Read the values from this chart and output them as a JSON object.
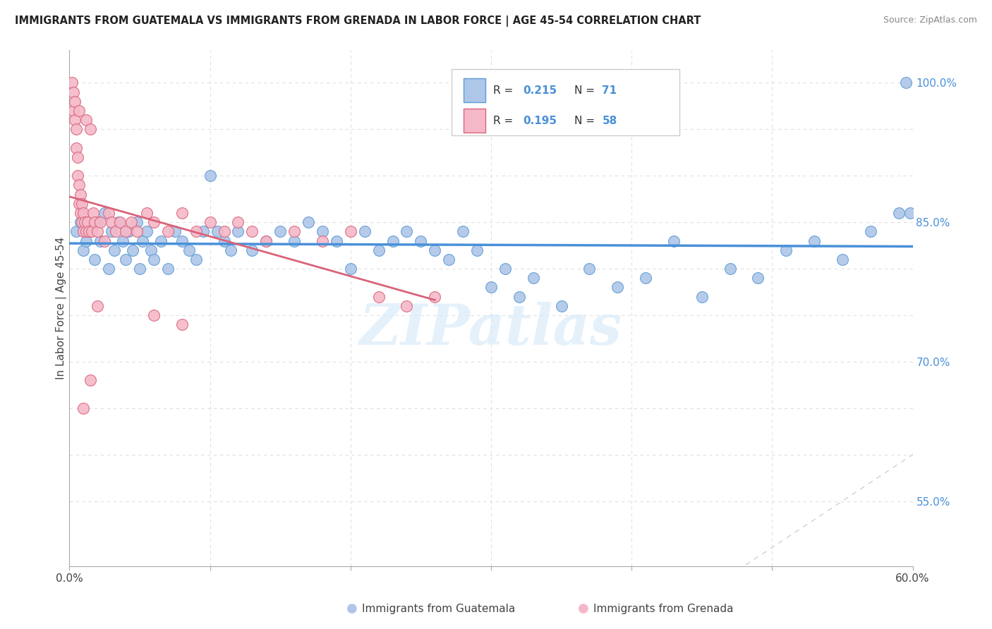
{
  "title": "IMMIGRANTS FROM GUATEMALA VS IMMIGRANTS FROM GRENADA IN LABOR FORCE | AGE 45-54 CORRELATION CHART",
  "source": "Source: ZipAtlas.com",
  "ylabel": "In Labor Force | Age 45-54",
  "x_min": 0.0,
  "x_max": 0.6,
  "y_min": 0.48,
  "y_max": 1.035,
  "R_guatemala": 0.215,
  "N_guatemala": 71,
  "R_grenada": 0.195,
  "N_grenada": 58,
  "color_guatemala": "#aec6e8",
  "color_grenada": "#f5b8c8",
  "edge_color_guatemala": "#5b9bd5",
  "edge_color_grenada": "#d9637a",
  "line_color_guatemala": "#4a90d9",
  "line_color_grenada": "#d9637a",
  "legend_color_blue": "#4a90d9",
  "watermark": "ZIPatlas",
  "y_grid": [
    0.55,
    0.6,
    0.65,
    0.7,
    0.75,
    0.8,
    0.85,
    0.9,
    0.95,
    1.0
  ],
  "x_grid": [
    0.0,
    0.1,
    0.2,
    0.3,
    0.4,
    0.5,
    0.6
  ],
  "y_tick_positions": [
    0.55,
    0.7,
    0.85,
    1.0
  ],
  "y_tick_labels": [
    "55.0%",
    "70.0%",
    "85.0%",
    "100.0%"
  ],
  "x_tick_labels": [
    "0.0%",
    "",
    "",
    "",
    "",
    "",
    "60.0%"
  ],
  "guat_x": [
    0.005,
    0.008,
    0.01,
    0.012,
    0.015,
    0.018,
    0.02,
    0.022,
    0.025,
    0.028,
    0.03,
    0.032,
    0.035,
    0.038,
    0.04,
    0.042,
    0.045,
    0.048,
    0.05,
    0.052,
    0.055,
    0.058,
    0.06,
    0.065,
    0.07,
    0.075,
    0.08,
    0.085,
    0.09,
    0.095,
    0.1,
    0.105,
    0.11,
    0.115,
    0.12,
    0.13,
    0.14,
    0.15,
    0.16,
    0.17,
    0.18,
    0.19,
    0.2,
    0.21,
    0.22,
    0.23,
    0.24,
    0.25,
    0.26,
    0.27,
    0.28,
    0.29,
    0.3,
    0.31,
    0.32,
    0.33,
    0.35,
    0.37,
    0.39,
    0.41,
    0.43,
    0.45,
    0.47,
    0.49,
    0.51,
    0.53,
    0.55,
    0.57,
    0.59,
    0.595,
    0.598
  ],
  "guat_y": [
    0.84,
    0.85,
    0.82,
    0.83,
    0.84,
    0.81,
    0.85,
    0.83,
    0.86,
    0.8,
    0.84,
    0.82,
    0.85,
    0.83,
    0.81,
    0.84,
    0.82,
    0.85,
    0.8,
    0.83,
    0.84,
    0.82,
    0.81,
    0.83,
    0.8,
    0.84,
    0.83,
    0.82,
    0.81,
    0.84,
    0.9,
    0.84,
    0.83,
    0.82,
    0.84,
    0.82,
    0.83,
    0.84,
    0.83,
    0.85,
    0.84,
    0.83,
    0.8,
    0.84,
    0.82,
    0.83,
    0.84,
    0.83,
    0.82,
    0.81,
    0.84,
    0.82,
    0.78,
    0.8,
    0.77,
    0.79,
    0.76,
    0.8,
    0.78,
    0.79,
    0.83,
    0.77,
    0.8,
    0.79,
    0.82,
    0.83,
    0.81,
    0.84,
    0.86,
    1.0,
    0.86
  ],
  "gren_x": [
    0.002,
    0.003,
    0.003,
    0.004,
    0.004,
    0.005,
    0.005,
    0.006,
    0.006,
    0.007,
    0.007,
    0.007,
    0.008,
    0.008,
    0.009,
    0.009,
    0.01,
    0.01,
    0.011,
    0.012,
    0.012,
    0.013,
    0.014,
    0.015,
    0.016,
    0.017,
    0.018,
    0.02,
    0.022,
    0.025,
    0.028,
    0.03,
    0.033,
    0.036,
    0.04,
    0.044,
    0.048,
    0.055,
    0.06,
    0.07,
    0.08,
    0.09,
    0.1,
    0.11,
    0.12,
    0.13,
    0.14,
    0.16,
    0.18,
    0.2,
    0.22,
    0.24,
    0.26,
    0.06,
    0.08,
    0.02,
    0.015,
    0.01
  ],
  "gren_y": [
    1.0,
    0.99,
    0.97,
    0.98,
    0.96,
    0.95,
    0.93,
    0.92,
    0.9,
    0.89,
    0.87,
    0.97,
    0.86,
    0.88,
    0.85,
    0.87,
    0.84,
    0.86,
    0.85,
    0.84,
    0.96,
    0.85,
    0.84,
    0.95,
    0.84,
    0.86,
    0.85,
    0.84,
    0.85,
    0.83,
    0.86,
    0.85,
    0.84,
    0.85,
    0.84,
    0.85,
    0.84,
    0.86,
    0.85,
    0.84,
    0.86,
    0.84,
    0.85,
    0.84,
    0.85,
    0.84,
    0.83,
    0.84,
    0.83,
    0.84,
    0.77,
    0.76,
    0.77,
    0.75,
    0.74,
    0.76,
    0.68,
    0.65
  ],
  "diag_line_color": "#d0d0d0",
  "grid_color": "#e0e0e0"
}
